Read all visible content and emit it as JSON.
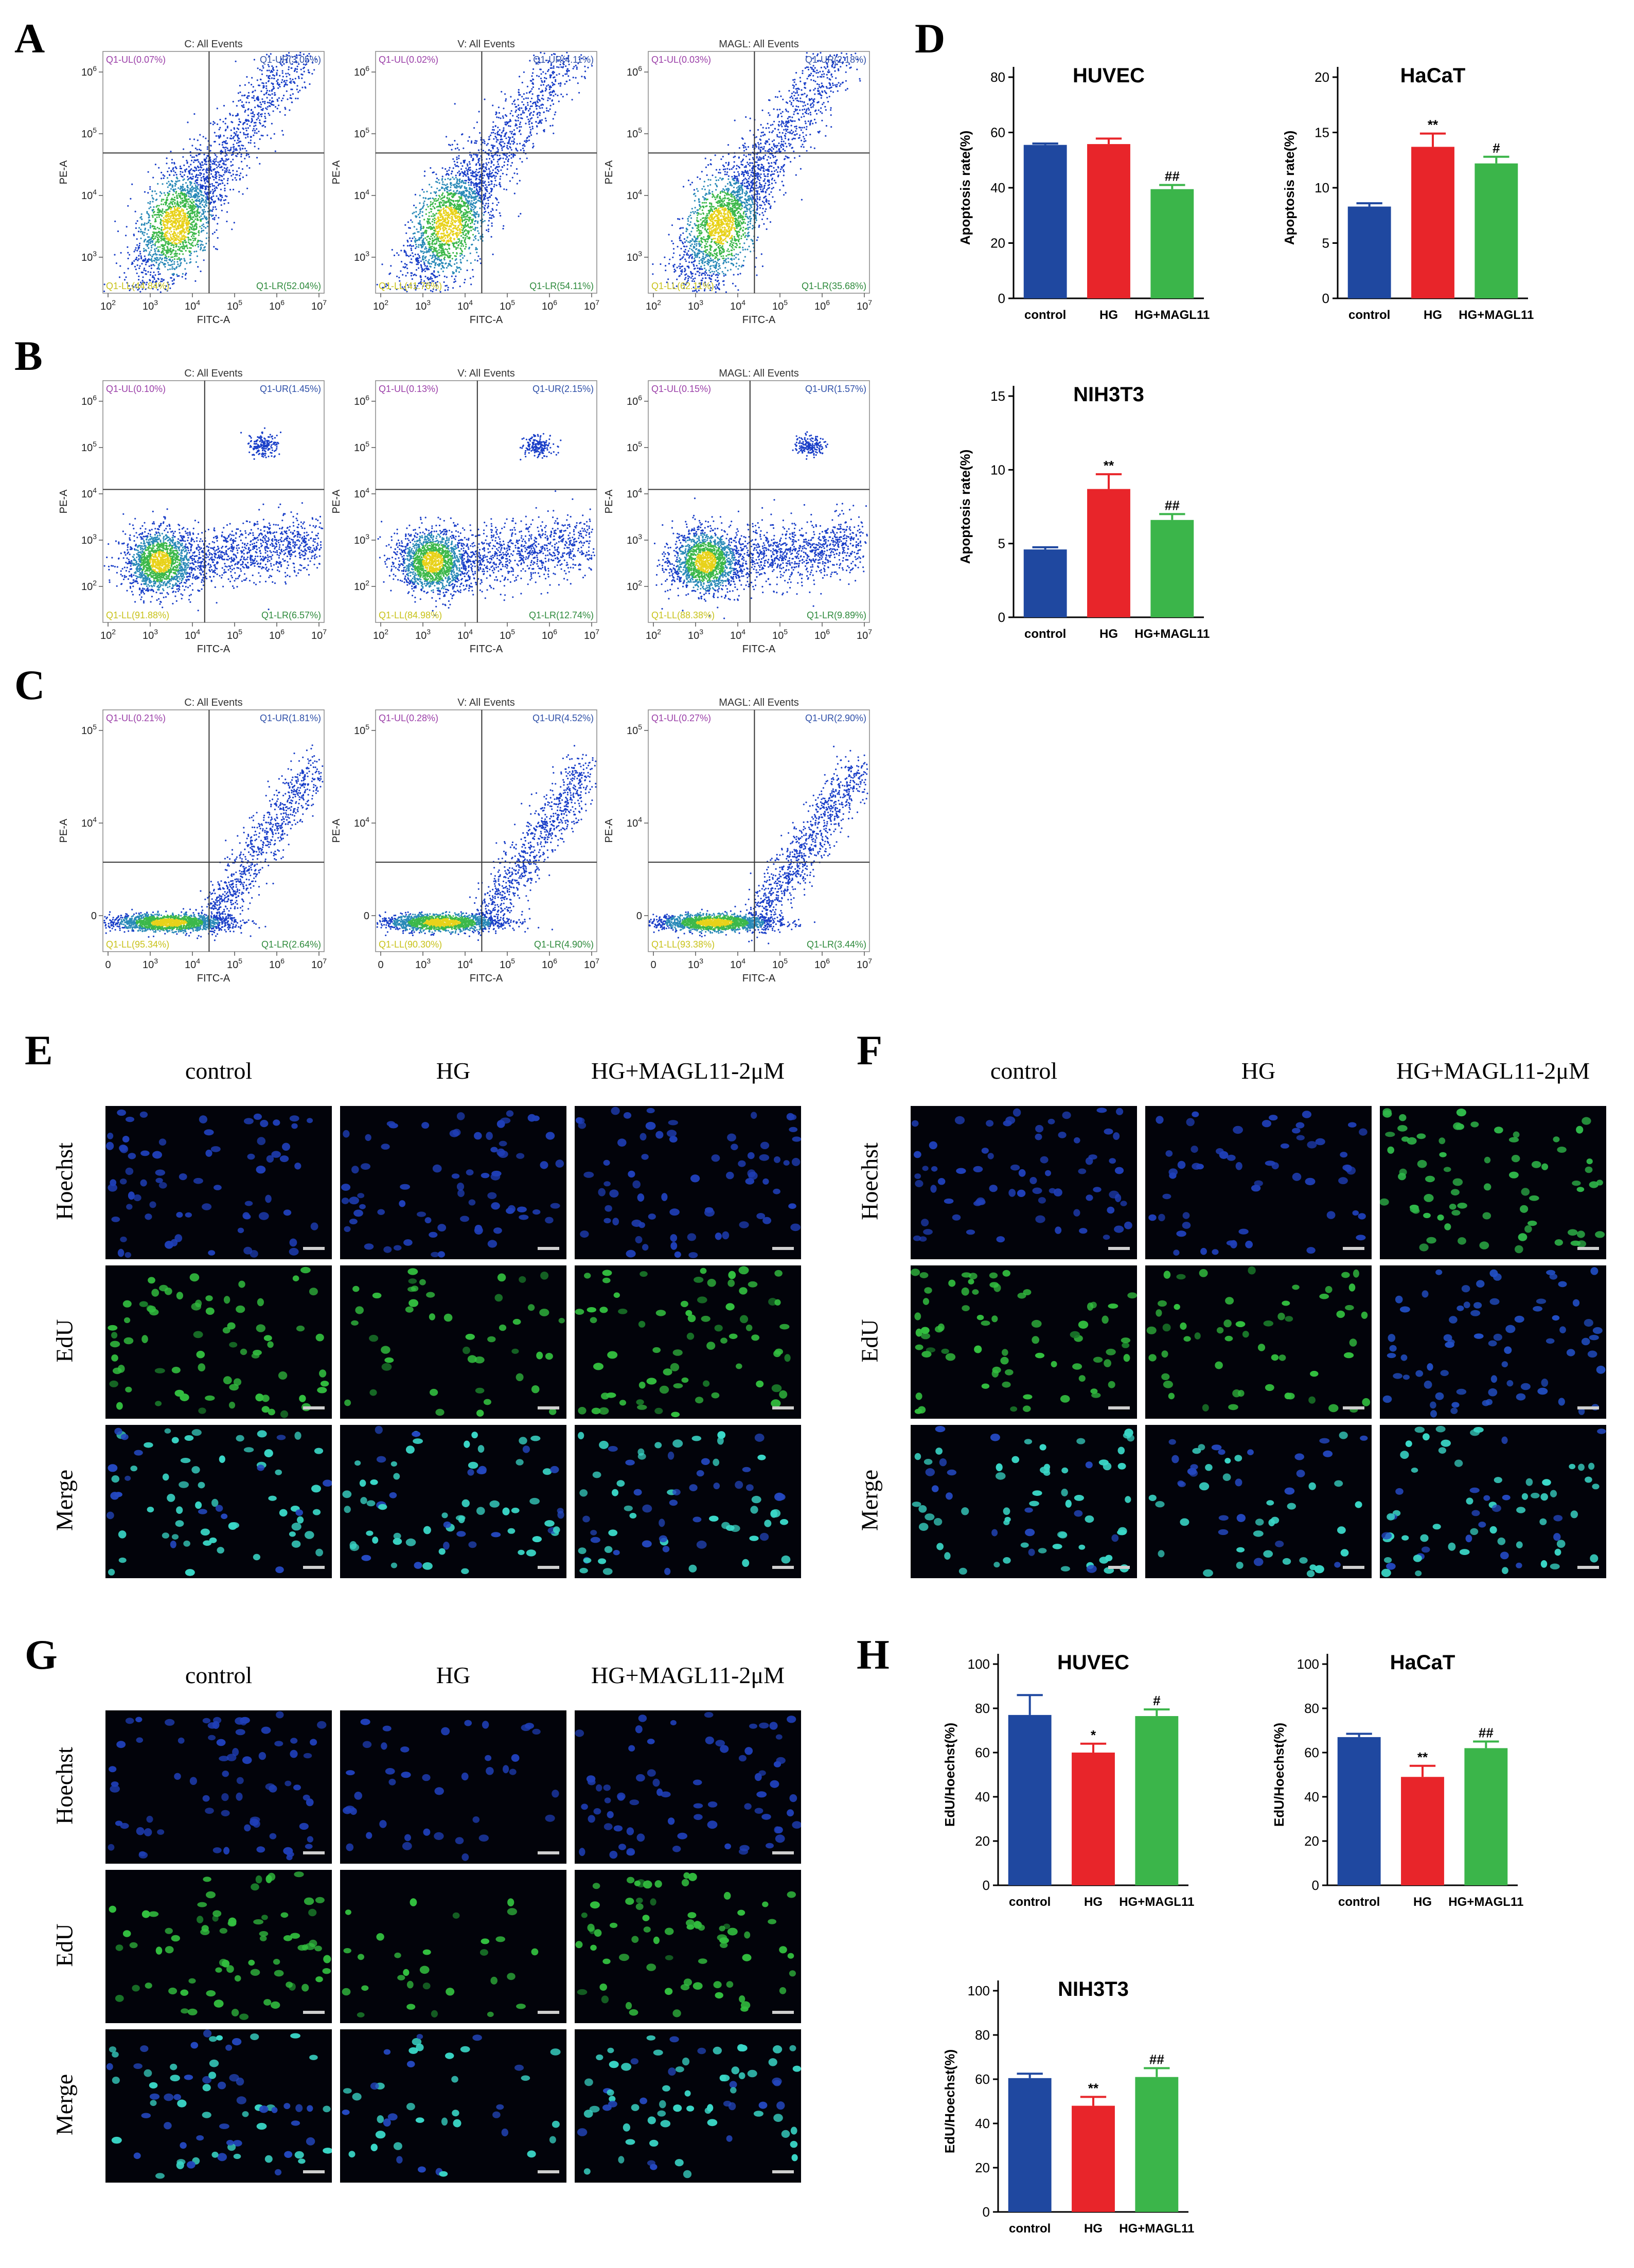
{
  "panel_letters": {
    "A": "A",
    "B": "B",
    "C": "C",
    "D": "D",
    "E": "E",
    "F": "F",
    "G": "G",
    "H": "H"
  },
  "flow": {
    "titles": [
      "C: All Events",
      "V: All Events",
      "MAGL: All Events"
    ],
    "x_label": "FITC-A",
    "y_label": "PE-A",
    "x_ticks_log": [
      "10^2",
      "10^3",
      "10^4",
      "10^5",
      "10^6",
      "10^7"
    ],
    "x_ticks_c": [
      "0",
      "10^3",
      "10^4",
      "10^5",
      "10^6",
      "10^7"
    ],
    "y_ticks_a": [
      "10^3",
      "10^4",
      "10^5",
      "10^6"
    ],
    "y_ticks_b": [
      "10^2",
      "10^3",
      "10^4",
      "10^5",
      "10^6"
    ],
    "y_ticks_c": [
      "0",
      "10^4",
      "10^5"
    ],
    "colors": {
      "ul": "#9b3fa8",
      "ur": "#2e4fa8",
      "ll": "#c8c21a",
      "lr": "#2e8a3c",
      "dots": "#1a3fc8"
    },
    "rows": {
      "A": [
        {
          "ul": "Q1-UL(0.07%)",
          "ur": "Q1-UR(3.05%)",
          "ll": "Q1-LL(44.84%)",
          "lr": "Q1-LR(52.04%)"
        },
        {
          "ul": "Q1-UL(0.02%)",
          "ur": "Q1-UR(4.11%)",
          "ll": "Q1-LL(41.76%)",
          "lr": "Q1-LR(54.11%)"
        },
        {
          "ul": "Q1-UL(0.03%)",
          "ur": "Q1-UR(2.18%)",
          "ll": "Q1-LL(62.11%)",
          "lr": "Q1-LR(35.68%)"
        }
      ],
      "B": [
        {
          "ul": "Q1-UL(0.10%)",
          "ur": "Q1-UR(1.45%)",
          "ll": "Q1-LL(91.88%)",
          "lr": "Q1-LR(6.57%)"
        },
        {
          "ul": "Q1-UL(0.13%)",
          "ur": "Q1-UR(2.15%)",
          "ll": "Q1-LL(84.98%)",
          "lr": "Q1-LR(12.74%)"
        },
        {
          "ul": "Q1-UL(0.15%)",
          "ur": "Q1-UR(1.57%)",
          "ll": "Q1-LL(88.38%)",
          "lr": "Q1-LR(9.89%)"
        }
      ],
      "C": [
        {
          "ul": "Q1-UL(0.21%)",
          "ur": "Q1-UR(1.81%)",
          "ll": "Q1-LL(95.34%)",
          "lr": "Q1-LR(2.64%)"
        },
        {
          "ul": "Q1-UL(0.28%)",
          "ur": "Q1-UR(4.52%)",
          "ll": "Q1-LL(90.30%)",
          "lr": "Q1-LR(4.90%)"
        },
        {
          "ul": "Q1-UL(0.27%)",
          "ur": "Q1-UR(2.90%)",
          "ll": "Q1-LL(93.38%)",
          "lr": "Q1-LR(3.44%)"
        }
      ]
    }
  },
  "microscopy": {
    "columns": [
      "control",
      "HG",
      "HG+MAGL11-2μM"
    ],
    "rows": [
      "Hoechst",
      "EdU",
      "Merge"
    ]
  },
  "chart_data": [
    {
      "id": "D1",
      "type": "bar",
      "title": "HUVEC",
      "ylabel": "Apoptosis rate(%)",
      "categories": [
        "control",
        "HG",
        "HG+MAGL11"
      ],
      "values": [
        55.5,
        55.8,
        39.5
      ],
      "errors": [
        0.5,
        2.0,
        1.5
      ],
      "annotations": [
        "",
        "",
        "##"
      ],
      "ylim": [
        0,
        80
      ],
      "yticks": [
        0,
        20,
        40,
        60,
        80
      ],
      "colors": [
        "#1f48a0",
        "#e8252a",
        "#3bb54a"
      ]
    },
    {
      "id": "D2",
      "type": "bar",
      "title": "HaCaT",
      "ylabel": "Apoptosis rate(%)",
      "categories": [
        "control",
        "HG",
        "HG+MAGL11"
      ],
      "values": [
        8.3,
        13.7,
        12.2
      ],
      "errors": [
        0.3,
        1.2,
        0.6
      ],
      "annotations": [
        "",
        "**",
        "#"
      ],
      "ylim": [
        0,
        20
      ],
      "yticks": [
        0,
        5,
        10,
        15,
        20
      ],
      "colors": [
        "#1f48a0",
        "#e8252a",
        "#3bb54a"
      ]
    },
    {
      "id": "D3",
      "type": "bar",
      "title": "NIH3T3",
      "ylabel": "Apoptosis rate(%)",
      "categories": [
        "control",
        "HG",
        "HG+MAGL11"
      ],
      "values": [
        4.6,
        8.7,
        6.6
      ],
      "errors": [
        0.15,
        1.0,
        0.4
      ],
      "annotations": [
        "",
        "**",
        "##"
      ],
      "ylim": [
        0,
        15
      ],
      "yticks": [
        0,
        5,
        10,
        15
      ],
      "colors": [
        "#1f48a0",
        "#e8252a",
        "#3bb54a"
      ]
    },
    {
      "id": "H1",
      "type": "bar",
      "title": "HUVEC",
      "ylabel": "EdU/Hoechst(%)",
      "categories": [
        "control",
        "HG",
        "HG+MAGL11"
      ],
      "values": [
        77,
        60,
        76.5
      ],
      "errors": [
        9,
        4,
        3
      ],
      "annotations": [
        "",
        "*",
        "#"
      ],
      "ylim": [
        0,
        100
      ],
      "yticks": [
        0,
        20,
        40,
        60,
        80,
        100
      ],
      "colors": [
        "#1f48a0",
        "#e8252a",
        "#3bb54a"
      ]
    },
    {
      "id": "H2",
      "type": "bar",
      "title": "HaCaT",
      "ylabel": "EdU/Hoechst(%)",
      "categories": [
        "control",
        "HG",
        "HG+MAGL11"
      ],
      "values": [
        67,
        49,
        62
      ],
      "errors": [
        1.5,
        5,
        3
      ],
      "annotations": [
        "",
        "**",
        "##"
      ],
      "ylim": [
        0,
        100
      ],
      "yticks": [
        0,
        20,
        40,
        60,
        80,
        100
      ],
      "colors": [
        "#1f48a0",
        "#e8252a",
        "#3bb54a"
      ]
    },
    {
      "id": "H3",
      "type": "bar",
      "title": "NIH3T3",
      "ylabel": "EdU/Hoechst(%)",
      "categories": [
        "control",
        "HG",
        "HG+MAGL11"
      ],
      "values": [
        60.5,
        48,
        61
      ],
      "errors": [
        2,
        4,
        4
      ],
      "annotations": [
        "",
        "**",
        "##"
      ],
      "ylim": [
        0,
        100
      ],
      "yticks": [
        0,
        20,
        40,
        60,
        80,
        100
      ],
      "colors": [
        "#1f48a0",
        "#e8252a",
        "#3bb54a"
      ]
    }
  ]
}
